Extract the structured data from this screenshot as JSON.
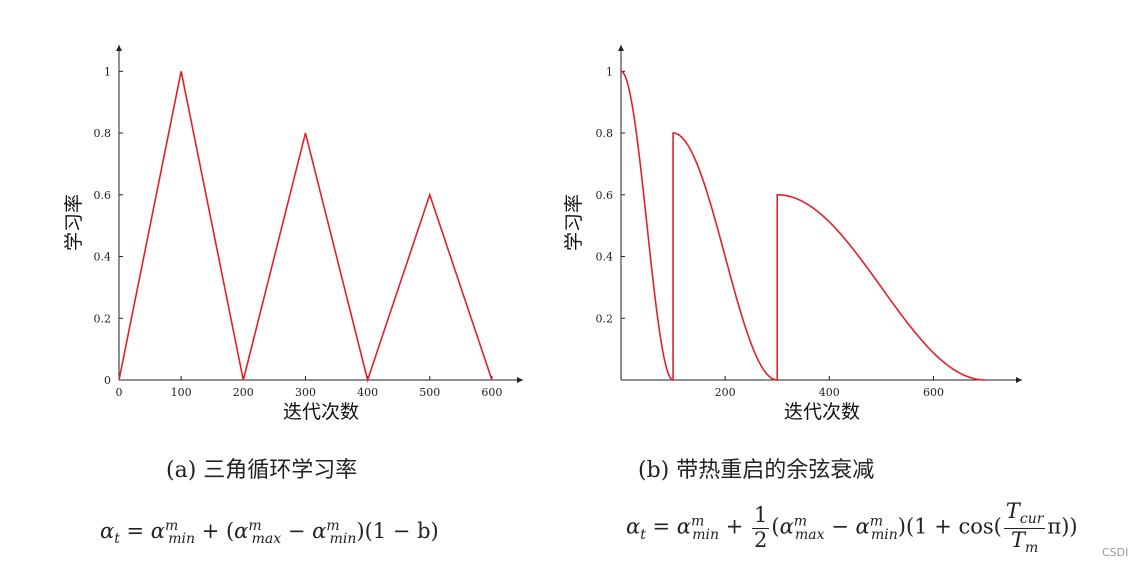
{
  "chart_data": [
    {
      "type": "line",
      "title": "",
      "xlabel": "迭代次数",
      "ylabel": "学习率",
      "xlim": [
        0,
        650
      ],
      "ylim": [
        0,
        1.15
      ],
      "x_ticks": [
        0,
        100,
        200,
        300,
        400,
        500,
        600
      ],
      "y_ticks": [
        0,
        0.2,
        0.4,
        0.6,
        0.8,
        1
      ],
      "x_tick_labels": [
        "0",
        "100",
        "200",
        "300",
        "400",
        "500",
        "600"
      ],
      "y_tick_labels": [
        "0",
        "0.2",
        "0.4",
        "0.6",
        "0.8",
        "1"
      ],
      "grid": false,
      "series": [
        {
          "color": "#e0202a",
          "x": [
            0,
            100,
            200,
            300,
            400,
            500,
            600
          ],
          "y": [
            0,
            1,
            0,
            0.8,
            0,
            0.6,
            0
          ]
        }
      ],
      "caption": "(a) 三角循环学习率"
    },
    {
      "type": "line",
      "title": "",
      "xlabel": "迭代次数",
      "ylabel": "学习率",
      "xlim": [
        0,
        770
      ],
      "ylim": [
        0,
        1.15
      ],
      "x_ticks": [
        200,
        400,
        600
      ],
      "y_ticks": [
        0.2,
        0.4,
        0.6,
        0.8,
        1
      ],
      "x_tick_labels": [
        "200",
        "400",
        "600"
      ],
      "y_tick_labels": [
        "0.2",
        "0.4",
        "0.6",
        "0.8",
        "1"
      ],
      "grid": false,
      "series": [
        {
          "color": "#e0202a",
          "restart_x": [
            0,
            100,
            300
          ],
          "cycle_end_x": [
            100,
            300,
            700
          ],
          "peak_y": [
            1,
            0.8,
            0.6
          ]
        }
      ],
      "caption": "(b) 带热重启的余弦衰减"
    }
  ],
  "formulas": {
    "a": {
      "alpha": "α",
      "t": "t",
      "eq": " = ",
      "m": "m",
      "min": "min",
      "max": "max",
      "rest": "(1 − b)"
    },
    "b": {
      "alpha": "α",
      "t": "t",
      "eq": " = ",
      "m": "m",
      "min": "min",
      "max": "max",
      "one": "1",
      "two": "2",
      "cos": "(1 + cos(",
      "tcur": "T",
      "cur": "cur",
      "tm": "T",
      "msub": "m",
      "pi": "π",
      "close": "))"
    }
  },
  "watermark": "CSDI"
}
